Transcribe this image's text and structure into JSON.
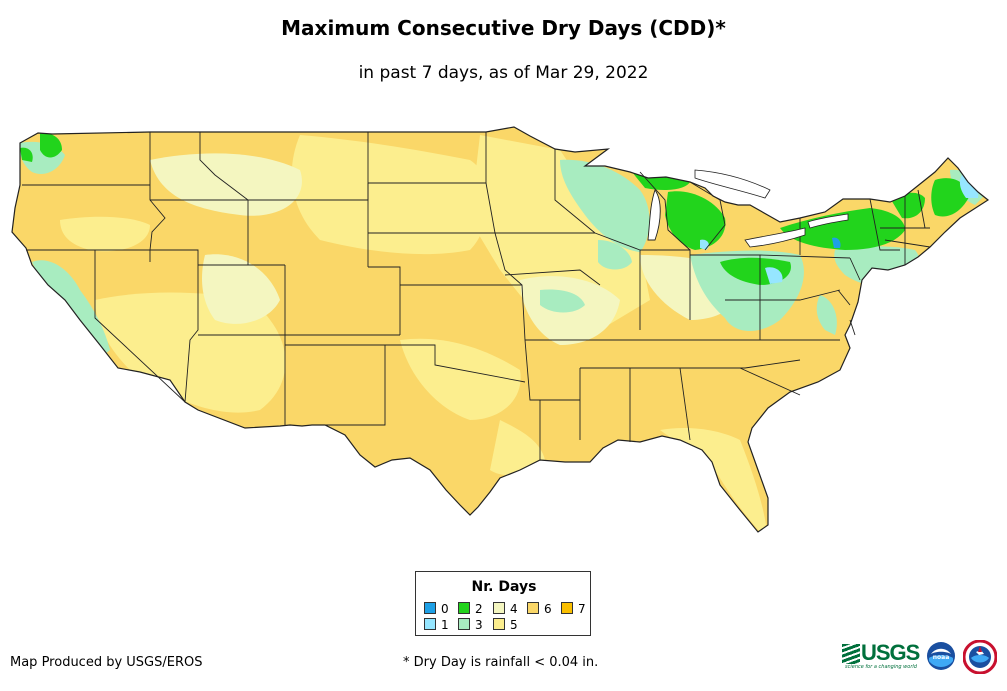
{
  "title": "Maximum Consecutive Dry Days (CDD)*",
  "subtitle": "in past 7 days, as of Mar 29, 2022",
  "legend": {
    "title": "Nr. Days",
    "items": [
      {
        "label": "0",
        "color": "#1ea0e6"
      },
      {
        "label": "1",
        "color": "#96e6ff"
      },
      {
        "label": "2",
        "color": "#22d41c"
      },
      {
        "label": "3",
        "color": "#a8ecc0"
      },
      {
        "label": "4",
        "color": "#f4f6c0"
      },
      {
        "label": "5",
        "color": "#fcee8e"
      },
      {
        "label": "6",
        "color": "#fad768"
      },
      {
        "label": "7",
        "color": "#fabf00"
      }
    ]
  },
  "credit": "Map Produced by USGS/EROS",
  "footnote": "* Dry Day is rainfall < 0.04 in.",
  "logos": {
    "usgs": "USGS",
    "usgs_tagline": "science for a changing world",
    "noaa": "noaa",
    "nws": "National Weather Service"
  },
  "map": {
    "icon": "conus-map",
    "colors": {
      "land_base": "#fad768",
      "light_yellow": "#fcee8e",
      "pale": "#f4f6c0",
      "mint": "#a8ecc0",
      "green": "#22d41c",
      "cyan": "#96e6ff",
      "blue": "#1ea0e6",
      "border": "#222222"
    }
  }
}
